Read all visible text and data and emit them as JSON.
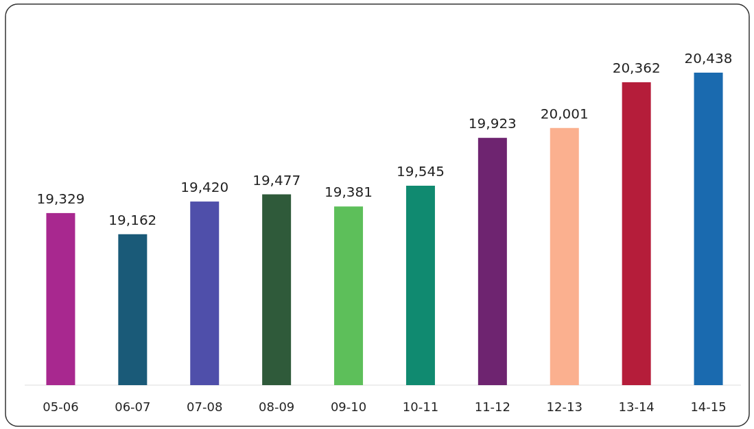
{
  "chart_data": {
    "type": "bar",
    "categories": [
      "05-06",
      "06-07",
      "07-08",
      "08-09",
      "09-10",
      "10-11",
      "11-12",
      "12-13",
      "13-14",
      "14-15"
    ],
    "values": [
      19329,
      19162,
      19420,
      19477,
      19381,
      19545,
      19923,
      20001,
      20362,
      20438
    ],
    "colors": [
      "#a8288f",
      "#1a5a78",
      "#4f4faa",
      "#2f5a3a",
      "#5dbf5a",
      "#108a70",
      "#6e2470",
      "#fbb08f",
      "#b51d3a",
      "#1a6aaf"
    ],
    "ylim": [
      17970,
      20438
    ],
    "value_labels": [
      "19,329",
      "19,162",
      "19,420",
      "19,477",
      "19,381",
      "19,545",
      "19,923",
      "20,001",
      "20,362",
      "20,438"
    ]
  }
}
